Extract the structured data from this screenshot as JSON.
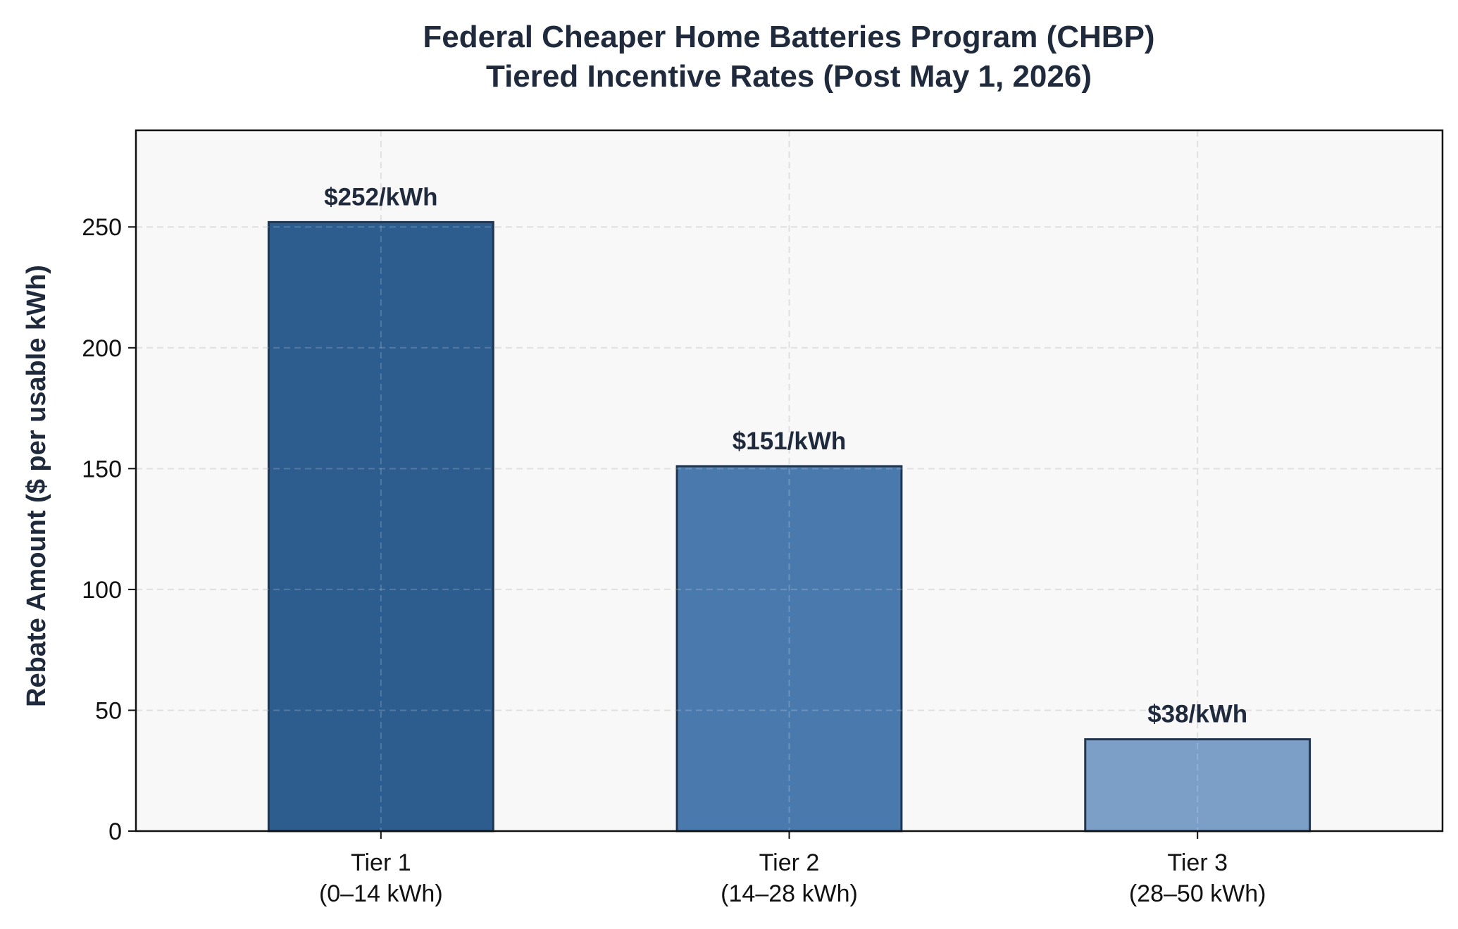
{
  "chart_data": {
    "type": "bar",
    "title": "Federal Cheaper Home Batteries Program (CHBP)",
    "subtitle": "Tiered Incentive Rates (Post May 1, 2026)",
    "xlabel": "",
    "ylabel": "Rebate Amount ($ per usable kWh)",
    "ylim": [
      0,
      290
    ],
    "yticks": [
      0,
      50,
      100,
      150,
      200,
      250
    ],
    "grid": true,
    "categories": [
      {
        "line1": "Tier 1",
        "line2": "(0–14 kWh)"
      },
      {
        "line1": "Tier 2",
        "line2": "(14–28 kWh)"
      },
      {
        "line1": "Tier 3",
        "line2": "(28–50 kWh)"
      }
    ],
    "values": [
      252,
      151,
      38
    ],
    "data_labels": [
      "$252/kWh",
      "$151/kWh",
      "$38/kWh"
    ],
    "bar_colors": [
      "#2d5c8e",
      "#4a7aad",
      "#7c9fc8"
    ],
    "bar_edge_color": "#1f3550",
    "plot_background": "#f8f8f8",
    "grid_color": "#d9d9d9"
  }
}
